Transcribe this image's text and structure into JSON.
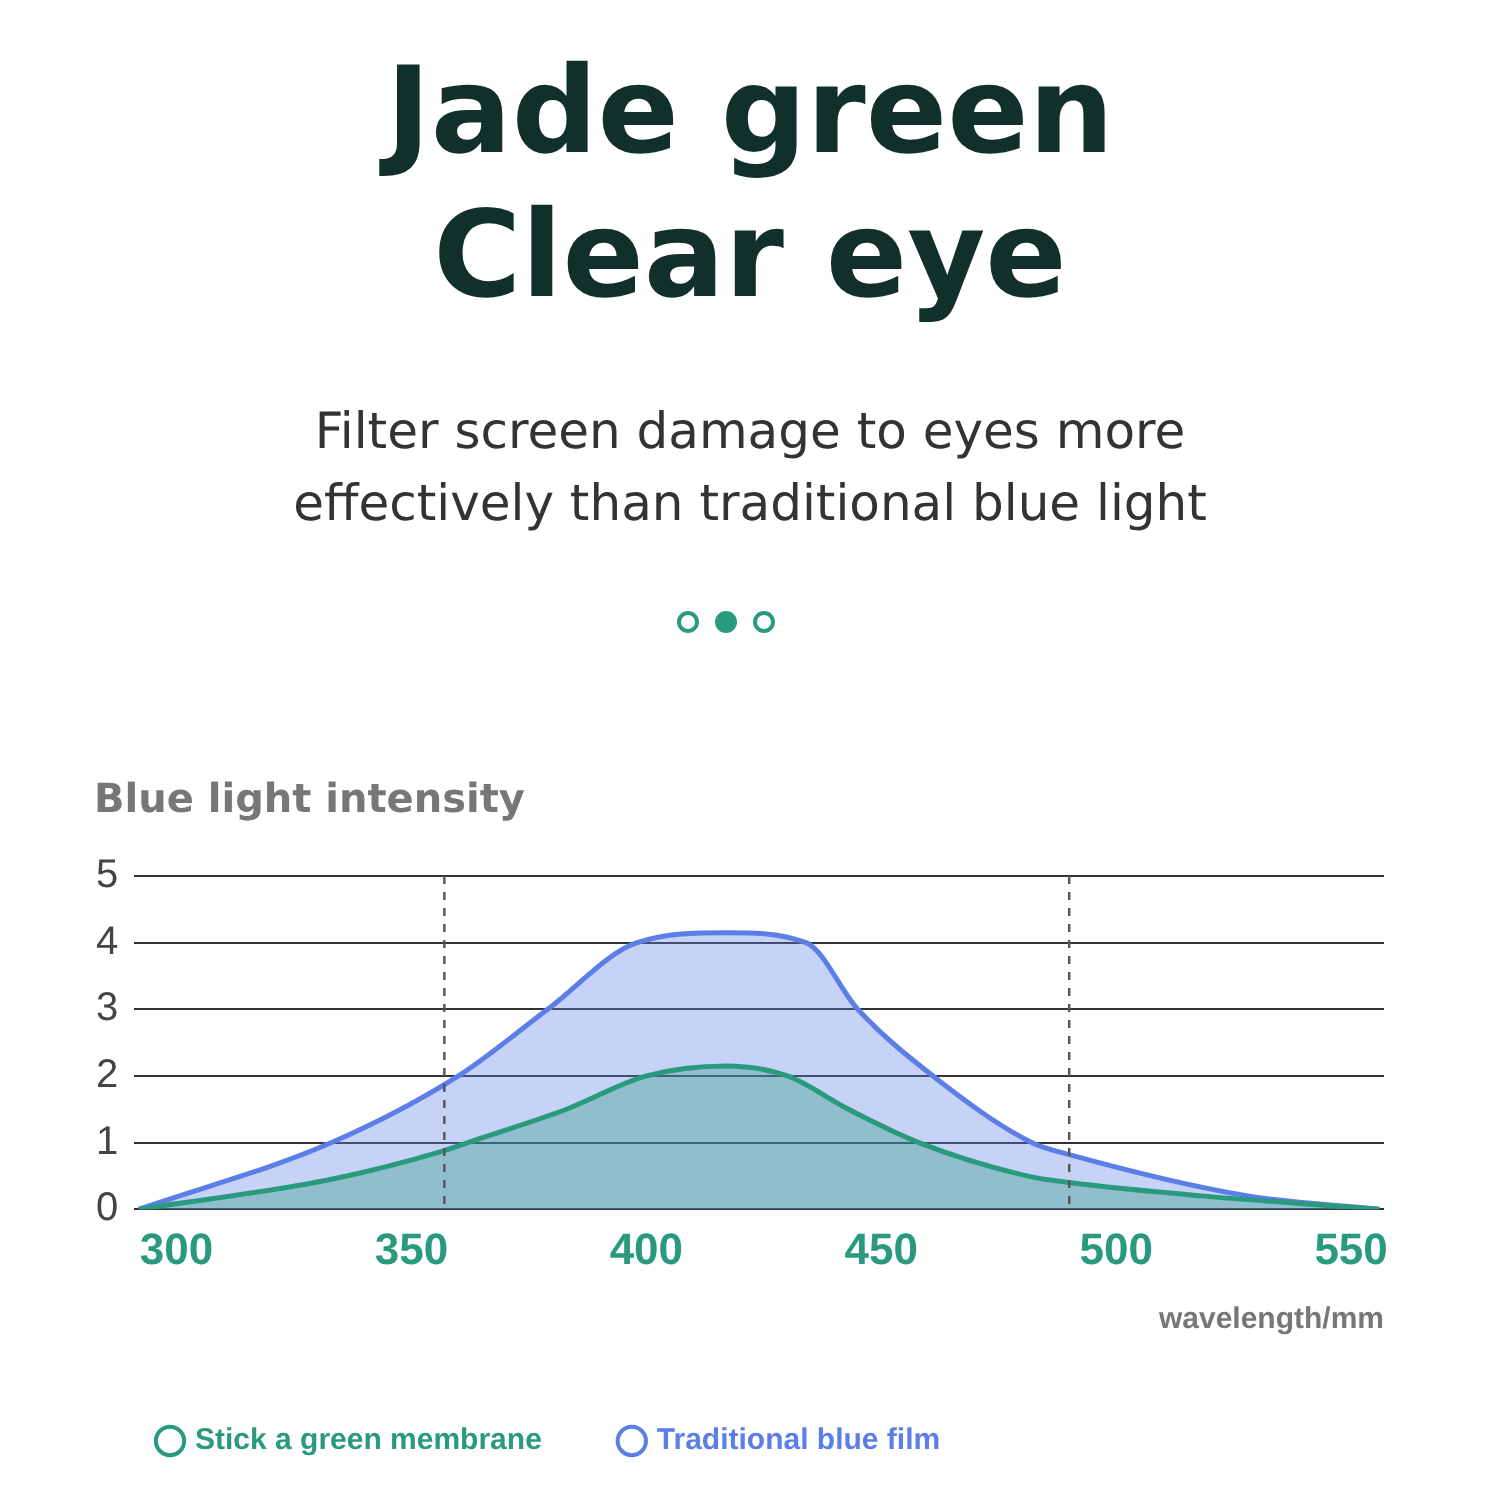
{
  "chart_data": {
    "type": "area",
    "title": "Jade green\nClear eye",
    "subtitle": "Filter screen damage to eyes more effectively than traditional blue light",
    "ylabel": "Blue light intensity",
    "xlabel": "wavelength/mm",
    "xlim": [
      291,
      557
    ],
    "xticks": [
      300,
      350,
      400,
      450,
      500,
      550
    ],
    "ylim": [
      0,
      5
    ],
    "yticks": [
      0,
      1,
      2,
      3,
      4,
      5
    ],
    "grid": "y",
    "legend": "bottom left",
    "marker": "none",
    "ref_lines": [
      {
        "axis": "x",
        "value": 357,
        "line_style": "dashed",
        "color": "#555555"
      },
      {
        "axis": "x",
        "value": 490,
        "line_style": "dashed",
        "color": "#555555"
      }
    ],
    "series": [
      {
        "name": "Stick a green membrane",
        "color": "#2a9a7e",
        "x": [
          292,
          333,
          357,
          362,
          383,
          400,
          417,
          430,
          443,
          458,
          481,
          490,
          518,
          556
        ],
        "values": [
          0,
          0.45,
          0.88,
          1,
          1.5,
          2,
          2.15,
          2,
          1.5,
          1,
          0.5,
          0.4,
          0.2,
          0
        ]
      },
      {
        "name": "Traditional blue film",
        "color": "#5b7fe6",
        "x": [
          292,
          333,
          360,
          379,
          398,
          417,
          434,
          445,
          461,
          482,
          490,
          528,
          556
        ],
        "values": [
          0,
          1,
          2,
          3,
          4,
          4.15,
          4,
          3,
          2,
          1,
          0.82,
          0.2,
          0
        ]
      }
    ]
  }
}
